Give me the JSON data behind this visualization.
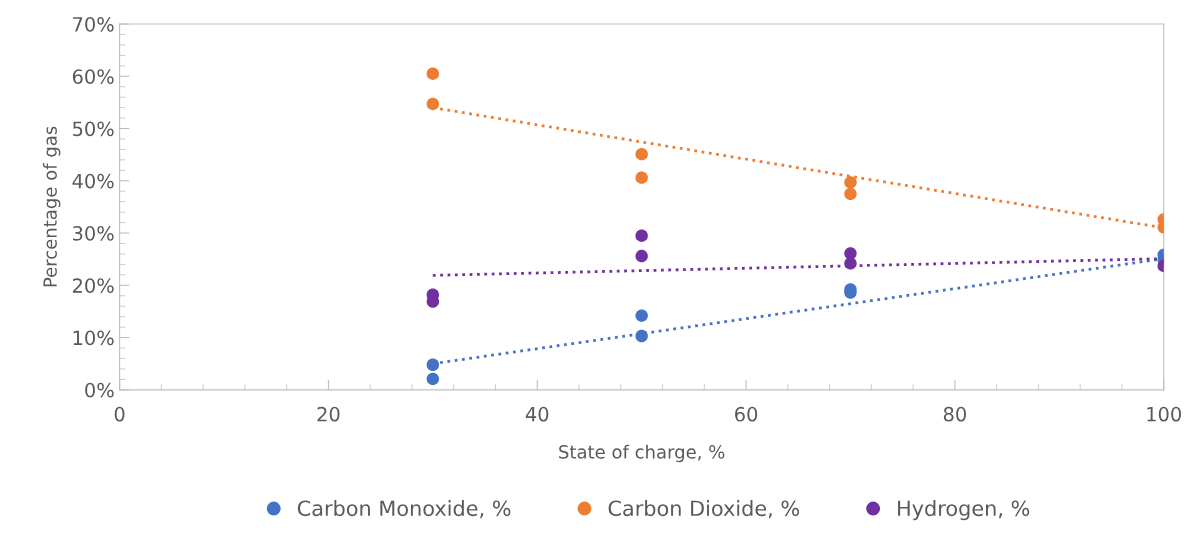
{
  "chart_data": {
    "type": "scatter",
    "xlabel": "State of charge, %",
    "ylabel": "Percentage of gas",
    "xlim": [
      0,
      100
    ],
    "xticks": [
      0,
      20,
      40,
      60,
      80,
      100
    ],
    "ylim": [
      0,
      70
    ],
    "yticks": [
      {
        "value": 0,
        "label": "0%"
      },
      {
        "value": 10,
        "label": "10%"
      },
      {
        "value": 20,
        "label": "20%"
      },
      {
        "value": 30,
        "label": "30%"
      },
      {
        "value": 40,
        "label": "40%"
      },
      {
        "value": 50,
        "label": "50%"
      },
      {
        "value": 60,
        "label": "60%"
      },
      {
        "value": 70,
        "label": "70%"
      }
    ],
    "grid": false,
    "legend": "bottom",
    "marker": "circle",
    "series": [
      {
        "name": "Carbon Monoxide, %",
        "color": "#4472c4",
        "x": [
          30,
          30,
          50,
          50,
          70,
          70,
          100,
          100
        ],
        "values": [
          4.8,
          2.1,
          14.2,
          10.3,
          19.2,
          18.6,
          25.8,
          24.9
        ]
      },
      {
        "name": "Carbon Dioxide, %",
        "color": "#ed7d31",
        "x": [
          30,
          30,
          50,
          50,
          70,
          70,
          100,
          100
        ],
        "values": [
          60.5,
          54.7,
          45.1,
          40.6,
          39.7,
          37.5,
          32.6,
          31.1
        ]
      },
      {
        "name": "Hydrogen, %",
        "color": "#7030a0",
        "x": [
          30,
          30,
          50,
          50,
          70,
          70,
          100
        ],
        "values": [
          18.2,
          16.9,
          29.5,
          25.6,
          26.1,
          24.2,
          23.7
        ]
      },
      {
        "type": "line",
        "line_style": "dotted",
        "marker": "none",
        "color": "#4472c4",
        "x": [
          30,
          100
        ],
        "values": [
          5.0,
          25.1
        ]
      },
      {
        "type": "line",
        "line_style": "dotted",
        "marker": "none",
        "color": "#ed7d31",
        "x": [
          30,
          100
        ],
        "values": [
          54.0,
          31.0
        ]
      },
      {
        "type": "line",
        "line_style": "dotted",
        "marker": "none",
        "color": "#7030a0",
        "x": [
          30,
          100
        ],
        "values": [
          21.9,
          25.1
        ]
      }
    ]
  }
}
